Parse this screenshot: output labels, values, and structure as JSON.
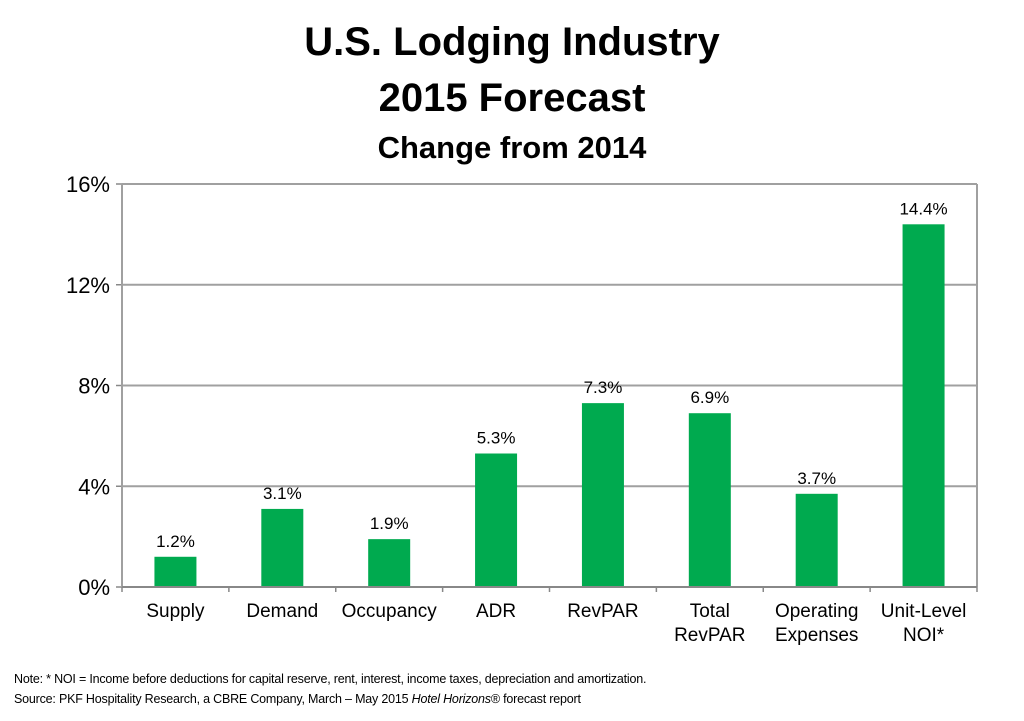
{
  "chart_data": {
    "type": "bar",
    "title": "U.S. Lodging Industry",
    "title_line2": "2015 Forecast",
    "subtitle": "Change from 2014",
    "categories": [
      "Supply",
      "Demand",
      "Occupancy",
      "ADR",
      "RevPAR",
      "Total\nRevPAR",
      "Operating\nExpenses",
      "Unit-Level\nNOI*"
    ],
    "values": [
      1.2,
      3.1,
      1.9,
      5.3,
      7.3,
      6.9,
      3.7,
      14.4
    ],
    "data_labels": [
      "1.2%",
      "3.1%",
      "1.9%",
      "5.3%",
      "7.3%",
      "6.9%",
      "3.7%",
      "14.4%"
    ],
    "yticks": [
      "0%",
      "4%",
      "8%",
      "12%",
      "16%"
    ],
    "ytick_values": [
      0,
      4,
      8,
      12,
      16
    ],
    "ylim": [
      0,
      16
    ],
    "xlabel": "",
    "ylabel": "",
    "grid": true,
    "bar_color": "#00AA4F"
  },
  "notes": {
    "note": "Note: * NOI = Income before deductions for capital reserve, rent, interest, income taxes, depreciation and amortization.",
    "source_prefix": "Source: PKF Hospitality Research, a CBRE Company, March – May 2015 ",
    "source_italic": "Hotel Horizons",
    "source_suffix": "® forecast report"
  }
}
